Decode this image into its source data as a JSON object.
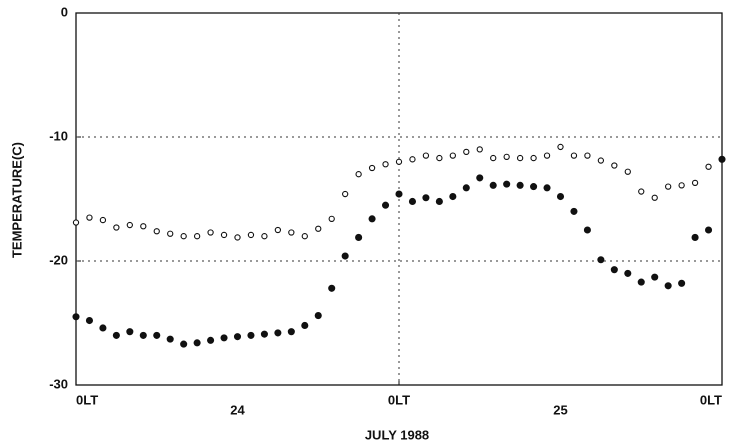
{
  "chart_data": {
    "type": "scatter",
    "xlabel": "JULY 1988",
    "ylabel": "TEMPERATURE(C)",
    "x": [
      0,
      1,
      2,
      3,
      4,
      5,
      6,
      7,
      8,
      9,
      10,
      11,
      12,
      13,
      14,
      15,
      16,
      17,
      18,
      19,
      20,
      21,
      22,
      23,
      24,
      25,
      26,
      27,
      28,
      29,
      30,
      31,
      32,
      33,
      34,
      35,
      36,
      37,
      38,
      39,
      40,
      41,
      42,
      43,
      44,
      45,
      46,
      47,
      48
    ],
    "series": [
      {
        "marker": "open",
        "color": "#111111",
        "values": [
          -16.9,
          -16.5,
          -16.7,
          -17.3,
          -17.1,
          -17.2,
          -17.6,
          -17.8,
          -18.0,
          -18.0,
          -17.7,
          -17.9,
          -18.1,
          -17.9,
          -18.0,
          -17.5,
          -17.7,
          -18.0,
          -17.4,
          -16.6,
          -14.6,
          -13.0,
          -12.5,
          -12.2,
          -12.0,
          -11.8,
          -11.5,
          -11.7,
          -11.5,
          -11.2,
          -11.0,
          -11.7,
          -11.6,
          -11.7,
          -11.7,
          -11.5,
          -10.8,
          -11.5,
          -11.5,
          -11.9,
          -12.3,
          -12.8,
          -14.4,
          -14.9,
          -14.0,
          -13.9,
          -13.7,
          -12.4,
          -11.8
        ]
      },
      {
        "marker": "filled",
        "color": "#111111",
        "values": [
          -24.5,
          -24.8,
          -25.4,
          -26.0,
          -25.7,
          -26.0,
          -26.0,
          -26.3,
          -26.7,
          -26.6,
          -26.4,
          -26.2,
          -26.1,
          -26.0,
          -25.9,
          -25.8,
          -25.7,
          -25.2,
          -24.4,
          -22.2,
          -19.6,
          -18.1,
          -16.6,
          -15.5,
          -14.6,
          -15.2,
          -14.9,
          -15.2,
          -14.8,
          -14.1,
          -13.3,
          -13.9,
          -13.8,
          -13.9,
          -14.0,
          -14.1,
          -14.8,
          -16.0,
          -17.5,
          -19.9,
          -20.7,
          -21.0,
          -21.7,
          -21.3,
          -22.0,
          -21.8,
          -18.1,
          -17.5,
          -11.8
        ]
      }
    ],
    "xlim": [
      0,
      48
    ],
    "xticks": [
      {
        "value": 0,
        "label": "0LT"
      },
      {
        "value": 24,
        "label": "0LT"
      },
      {
        "value": 48,
        "label": "0LT"
      }
    ],
    "day_labels": [
      {
        "value": 12,
        "label": "24"
      },
      {
        "value": 36,
        "label": "25"
      }
    ],
    "ylim": [
      -30,
      0
    ],
    "yticks": [
      -30,
      -20,
      -10,
      0
    ],
    "grid": true
  }
}
